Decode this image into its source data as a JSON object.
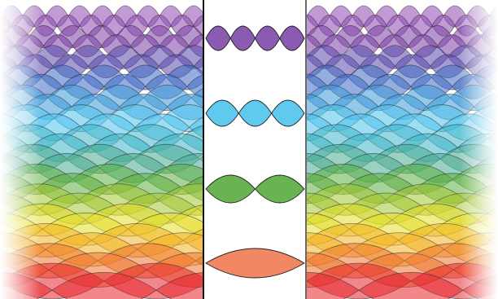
{
  "bands": [
    {
      "color": "#8e4bb1",
      "lobes_center": 4
    },
    {
      "color": "#7c3fa8",
      "lobes_center": 0
    },
    {
      "color": "#5a49ad",
      "lobes_center": 0
    },
    {
      "color": "#3f6cc4",
      "lobes_center": 0
    },
    {
      "color": "#3d9ad9",
      "lobes_center": 0
    },
    {
      "color": "#4fc3ec",
      "lobes_center": 3
    },
    {
      "color": "#3fb6c8",
      "lobes_center": 0
    },
    {
      "color": "#48ac8f",
      "lobes_center": 0
    },
    {
      "color": "#5daf3f",
      "lobes_center": 2
    },
    {
      "color": "#a2c631",
      "lobes_center": 0
    },
    {
      "color": "#e6df2a",
      "lobes_center": 0
    },
    {
      "color": "#f4b324",
      "lobes_center": 0
    },
    {
      "color": "#f0772e",
      "lobes_center": 1
    },
    {
      "color": "#e5252b",
      "lobes_center": 0
    }
  ],
  "center_wave_colors": [
    "#7e48a8",
    "#4fc3ec",
    "#5aab3e",
    "#f07a52"
  ],
  "divider_color": "#111111"
}
